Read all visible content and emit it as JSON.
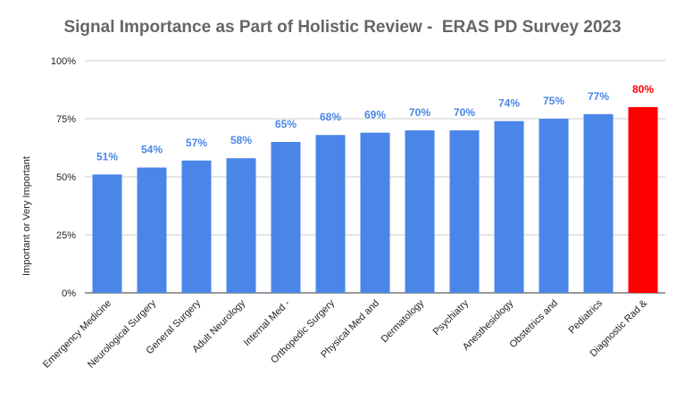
{
  "chart_data": {
    "type": "bar",
    "title": "Signal Importance as Part of Holistic Review -  ERAS PD Survey 2023",
    "xlabel": "",
    "ylabel": "Important or Very Important",
    "ylim": [
      0,
      100
    ],
    "yticks": [
      "0%",
      "25%",
      "50%",
      "75%",
      "100%"
    ],
    "grid": true,
    "legend": "none",
    "categories": [
      "Emergency Medicine",
      "Neurological Surgery",
      "General Surgery",
      "Adult Neurology",
      "Internal Med -",
      "Orthopedic Surgery",
      "Physical Med and",
      "Dermatology",
      "Psychiatry",
      "Anesthesiology",
      "Obstetrics and",
      "Pediatrics",
      "Diagnostic Rad &"
    ],
    "values": [
      51,
      54,
      57,
      58,
      65,
      68,
      69,
      70,
      70,
      74,
      75,
      77,
      80
    ],
    "data_labels": [
      "51%",
      "54%",
      "57%",
      "58%",
      "65%",
      "68%",
      "69%",
      "70%",
      "70%",
      "74%",
      "75%",
      "77%",
      "80%"
    ],
    "highlight_index": 12,
    "colors": {
      "bar": "#4a86e8",
      "highlight": "#ff0000",
      "label": "#4a86e8",
      "highlight_label": "#ff0000",
      "grid": "#cccccc"
    }
  }
}
